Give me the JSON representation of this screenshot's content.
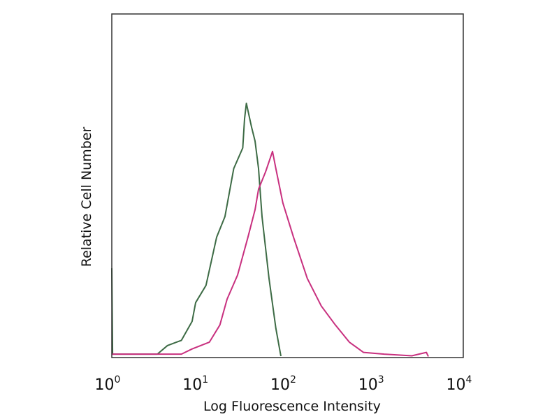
{
  "chart_data": {
    "type": "line",
    "title": "",
    "xlabel": "Log Fluorescence Intensity",
    "ylabel": "Relative Cell Number",
    "x_scale": "log",
    "xlim": [
      1,
      10000
    ],
    "ylim": [
      0,
      100
    ],
    "grid": false,
    "legend": "none",
    "x_ticks": [
      {
        "base": "10",
        "exp": "0",
        "value": 1
      },
      {
        "base": "10",
        "exp": "1",
        "value": 10
      },
      {
        "base": "10",
        "exp": "2",
        "value": 100
      },
      {
        "base": "10",
        "exp": "3",
        "value": 1000
      },
      {
        "base": "10",
        "exp": "4",
        "value": 10000
      }
    ],
    "series": [
      {
        "color": "#3d6b45",
        "points": [
          [
            1,
            26
          ],
          [
            1.02,
            1
          ],
          [
            2,
            1
          ],
          [
            3.3,
            1
          ],
          [
            4.3,
            3.5
          ],
          [
            6.2,
            5
          ],
          [
            8.2,
            10.5
          ],
          [
            9,
            16
          ],
          [
            11.8,
            21
          ],
          [
            15.6,
            35
          ],
          [
            19.4,
            41
          ],
          [
            24.4,
            55
          ],
          [
            30.9,
            61
          ],
          [
            32.4,
            69.5
          ],
          [
            34,
            74
          ],
          [
            39,
            67
          ],
          [
            42.7,
            63
          ],
          [
            46.8,
            55
          ],
          [
            51.3,
            41
          ],
          [
            61.5,
            23
          ],
          [
            73.7,
            8.5
          ],
          [
            84,
            0.4
          ]
        ]
      },
      {
        "color": "#c8307f",
        "points": [
          [
            1,
            1
          ],
          [
            3,
            1
          ],
          [
            6.2,
            1
          ],
          [
            8.2,
            2.5
          ],
          [
            12.9,
            4.5
          ],
          [
            17,
            9.5
          ],
          [
            20.5,
            17
          ],
          [
            27,
            24
          ],
          [
            35.4,
            35
          ],
          [
            42.7,
            43
          ],
          [
            46.8,
            49
          ],
          [
            56.2,
            54
          ],
          [
            67.4,
            60
          ],
          [
            73.7,
            55
          ],
          [
            88.4,
            45
          ],
          [
            117,
            35
          ],
          [
            168,
            23
          ],
          [
            242,
            15
          ],
          [
            350,
            9.5
          ],
          [
            505,
            4.5
          ],
          [
            730,
            1.5
          ],
          [
            1260,
            1
          ],
          [
            2600,
            0.5
          ],
          [
            3800,
            1.5
          ],
          [
            4000,
            0.3
          ]
        ]
      }
    ]
  }
}
